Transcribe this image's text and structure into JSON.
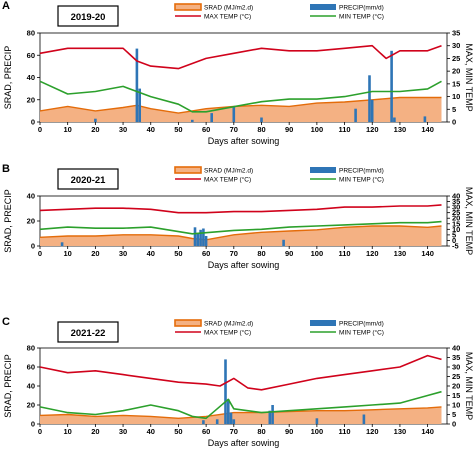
{
  "chart_data": [
    {
      "panel_label": "A",
      "season": "2019-20",
      "type": "line",
      "xlabel": "Days after sowing",
      "ylabel_left": "SRAD, PRECIP",
      "ylabel_right": "MAX, MIN TEMP",
      "xlim": [
        0,
        147
      ],
      "xticks": [
        0,
        10,
        20,
        30,
        40,
        50,
        60,
        70,
        80,
        90,
        100,
        110,
        120,
        130,
        140
      ],
      "ylim_left": [
        0,
        80
      ],
      "yticks_left": [
        0,
        20,
        40,
        60,
        80
      ],
      "ylim_right": [
        0,
        35
      ],
      "yticks_right": [
        0,
        5,
        10,
        15,
        20,
        25,
        30,
        35
      ],
      "legend": [
        {
          "name": "SRAD (MJ/m2.d)",
          "style": "area",
          "color": "#f4b183",
          "edge": "#e46c0a"
        },
        {
          "name": "PRECIP(mm/d)",
          "style": "bar",
          "color": "#2e75b6"
        },
        {
          "name": "MAX TEMP (°C)",
          "style": "line",
          "color": "#d0021b"
        },
        {
          "name": "MIN TEMP (°C)",
          "style": "line",
          "color": "#2ca02c"
        }
      ],
      "series": [
        {
          "name": "SRAD (MJ/m2.d)",
          "axis": "left",
          "x": [
            0,
            10,
            20,
            30,
            35,
            40,
            50,
            55,
            60,
            70,
            80,
            90,
            100,
            110,
            120,
            130,
            140,
            145
          ],
          "values": [
            10,
            14,
            10,
            13,
            15,
            12,
            8,
            10,
            12,
            14,
            15,
            14,
            17,
            18,
            20,
            22,
            22,
            22
          ]
        },
        {
          "name": "MAX TEMP (°C)",
          "axis": "right",
          "x": [
            0,
            10,
            20,
            30,
            35,
            40,
            50,
            60,
            70,
            80,
            90,
            100,
            110,
            120,
            125,
            130,
            140,
            145
          ],
          "values": [
            27,
            29,
            29,
            29,
            24,
            22,
            21,
            25,
            27,
            29,
            28,
            28,
            29,
            30,
            25,
            28,
            28,
            30
          ]
        },
        {
          "name": "MIN TEMP (°C)",
          "axis": "right",
          "x": [
            0,
            10,
            20,
            30,
            40,
            50,
            55,
            60,
            70,
            80,
            90,
            100,
            110,
            120,
            130,
            140,
            145
          ],
          "values": [
            16,
            11,
            12,
            14,
            10,
            7,
            4,
            4,
            6,
            8,
            9,
            9,
            10,
            12,
            12,
            13,
            16
          ]
        },
        {
          "name": "PRECIP(mm/d)",
          "axis": "left",
          "style": "bar",
          "x": [
            20,
            35,
            36,
            55,
            62,
            70,
            80,
            114,
            119,
            120,
            127,
            128,
            139
          ],
          "values": [
            3,
            66,
            30,
            2,
            8,
            14,
            4,
            12,
            42,
            20,
            64,
            4,
            5
          ]
        }
      ]
    },
    {
      "panel_label": "B",
      "season": "2020-21",
      "type": "line",
      "xlabel": "Days after sowing",
      "ylabel_left": "SRAD, PRECIP",
      "ylabel_right": "MAX, MIN TEMP",
      "xlim": [
        0,
        147
      ],
      "xticks": [
        0,
        10,
        20,
        30,
        40,
        50,
        60,
        70,
        80,
        90,
        100,
        110,
        120,
        130,
        140
      ],
      "ylim_left": [
        0,
        40
      ],
      "yticks_left": [
        0,
        20,
        40
      ],
      "ylim_right": [
        -5,
        40
      ],
      "yticks_right": [
        -5,
        0,
        5,
        10,
        15,
        20,
        25,
        30,
        35,
        40
      ],
      "legend": [
        {
          "name": "SRAD (MJ/m2.d)",
          "style": "area",
          "color": "#f4b183",
          "edge": "#e46c0a"
        },
        {
          "name": "PRECIP(mm/d)",
          "style": "bar",
          "color": "#2e75b6"
        },
        {
          "name": "MAX TEMP (°C)",
          "style": "line",
          "color": "#d0021b"
        },
        {
          "name": "MIN TEMP (°C)",
          "style": "line",
          "color": "#2ca02c"
        }
      ],
      "series": [
        {
          "name": "SRAD (MJ/m2.d)",
          "axis": "left",
          "x": [
            0,
            10,
            20,
            30,
            40,
            50,
            55,
            60,
            70,
            80,
            90,
            100,
            110,
            120,
            130,
            140,
            145
          ],
          "values": [
            7,
            8,
            8,
            9,
            9,
            8,
            6,
            5,
            9,
            11,
            12,
            13,
            15,
            16,
            16,
            15,
            16
          ]
        },
        {
          "name": "MAX TEMP (°C)",
          "axis": "right",
          "x": [
            0,
            10,
            20,
            30,
            40,
            50,
            60,
            70,
            80,
            90,
            100,
            110,
            120,
            130,
            140,
            145
          ],
          "values": [
            27,
            28,
            29,
            29,
            28,
            25,
            25,
            26,
            26,
            27,
            28,
            30,
            30,
            31,
            31,
            32
          ]
        },
        {
          "name": "MIN TEMP (°C)",
          "axis": "right",
          "x": [
            0,
            10,
            20,
            30,
            40,
            50,
            55,
            60,
            70,
            80,
            90,
            100,
            110,
            120,
            130,
            140,
            145
          ],
          "values": [
            10,
            12,
            11,
            11,
            12,
            8,
            6,
            7,
            9,
            10,
            12,
            13,
            14,
            15,
            16,
            16,
            17
          ]
        },
        {
          "name": "PRECIP(mm/d)",
          "axis": "left",
          "style": "bar",
          "x": [
            8,
            56,
            57,
            58,
            59,
            60,
            88
          ],
          "values": [
            3,
            15,
            10,
            13,
            14,
            8,
            5
          ]
        }
      ]
    },
    {
      "panel_label": "C",
      "season": "2021-22",
      "type": "line",
      "xlabel": "Days after sowing",
      "ylabel_left": "SRAD, PRECIP",
      "ylabel_right": "MAX, MIN TEMP",
      "xlim": [
        0,
        147
      ],
      "xticks": [
        0,
        10,
        20,
        30,
        40,
        50,
        60,
        70,
        80,
        90,
        100,
        110,
        120,
        130,
        140
      ],
      "ylim_left": [
        0,
        80
      ],
      "yticks_left": [
        0,
        20,
        40,
        60,
        80
      ],
      "ylim_right": [
        0,
        40
      ],
      "yticks_right": [
        0,
        5,
        10,
        15,
        20,
        25,
        30,
        35,
        40
      ],
      "legend": [
        {
          "name": "SRAD (MJ/m2.d)",
          "style": "area",
          "color": "#f4b183",
          "edge": "#e46c0a"
        },
        {
          "name": "PRECIP(mm/d)",
          "style": "bar",
          "color": "#2e75b6"
        },
        {
          "name": "MAX TEMP (°C)",
          "style": "line",
          "color": "#d0021b"
        },
        {
          "name": "MIN TEMP (°C)",
          "style": "line",
          "color": "#2ca02c"
        }
      ],
      "series": [
        {
          "name": "SRAD (MJ/m2.d)",
          "axis": "left",
          "x": [
            0,
            10,
            20,
            30,
            40,
            50,
            60,
            70,
            80,
            90,
            100,
            110,
            120,
            130,
            140,
            145
          ],
          "values": [
            9,
            10,
            8,
            9,
            8,
            6,
            8,
            12,
            12,
            13,
            14,
            14,
            15,
            16,
            17,
            18
          ]
        },
        {
          "name": "MAX TEMP (°C)",
          "axis": "right",
          "x": [
            0,
            10,
            20,
            30,
            40,
            50,
            60,
            65,
            70,
            75,
            80,
            90,
            100,
            110,
            120,
            130,
            140,
            145
          ],
          "values": [
            30,
            27,
            28,
            26,
            24,
            22,
            21,
            20,
            24,
            19,
            18,
            21,
            24,
            26,
            28,
            30,
            36,
            34
          ]
        },
        {
          "name": "MIN TEMP (°C)",
          "axis": "right",
          "x": [
            0,
            10,
            20,
            30,
            40,
            50,
            55,
            60,
            68,
            70,
            80,
            90,
            100,
            110,
            120,
            130,
            140,
            145
          ],
          "values": [
            9,
            6,
            5,
            7,
            10,
            7,
            4,
            3,
            13,
            8,
            6,
            7,
            8,
            9,
            10,
            11,
            15,
            17
          ]
        },
        {
          "name": "PRECIP(mm/d)",
          "axis": "left",
          "style": "bar",
          "x": [
            59,
            64,
            67,
            68,
            69,
            70,
            83,
            84,
            100,
            117
          ],
          "values": [
            4,
            5,
            68,
            26,
            12,
            5,
            14,
            20,
            6,
            10
          ]
        }
      ]
    }
  ]
}
